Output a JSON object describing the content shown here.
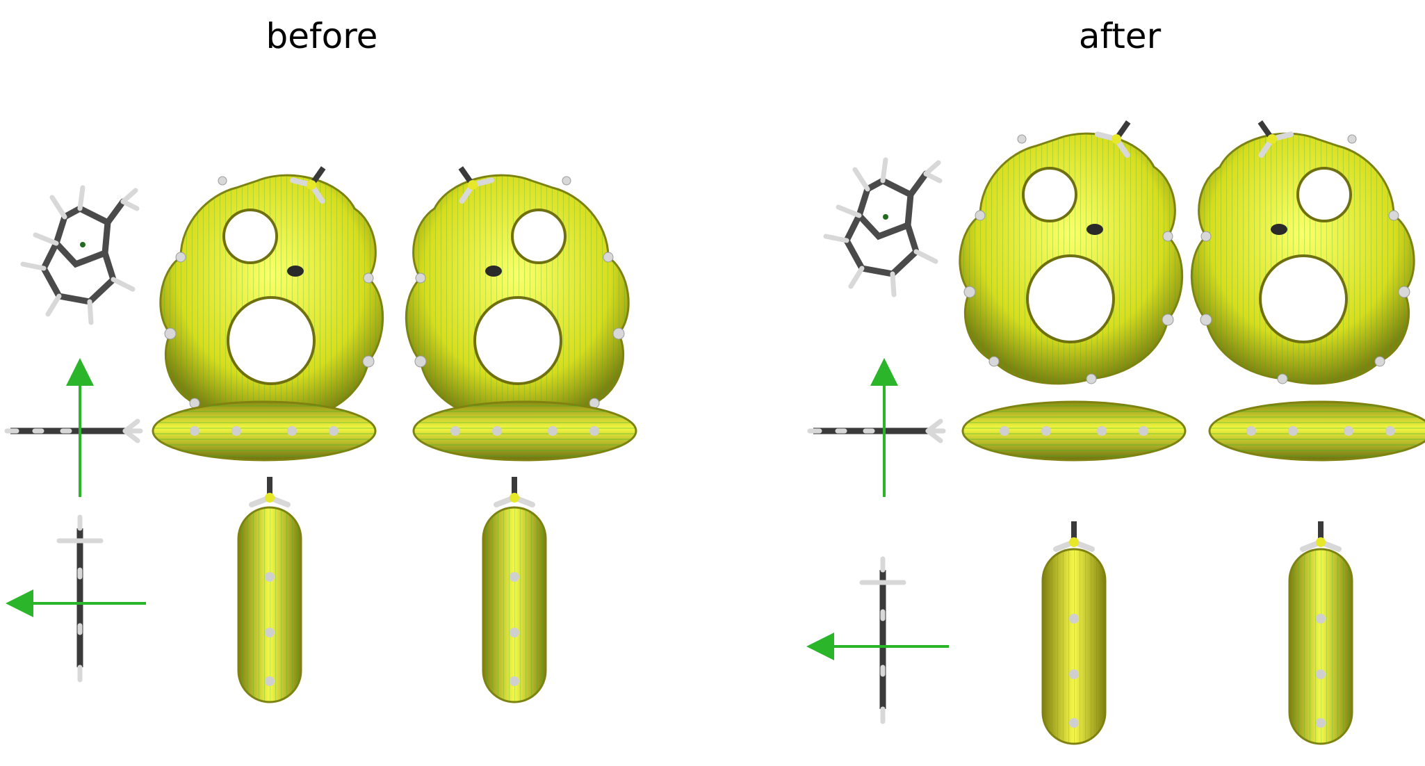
{
  "panels": {
    "before": {
      "title": "before"
    },
    "after": {
      "title": "after"
    }
  },
  "colors": {
    "surface": "#e8e82a",
    "surface_dark": "#8a8a10",
    "arrow_green": "#2bb52b",
    "bond_dark": "#3a3a3a",
    "hydrogen": "#d8d8d8",
    "carbon_center": "#1f6b1f"
  }
}
